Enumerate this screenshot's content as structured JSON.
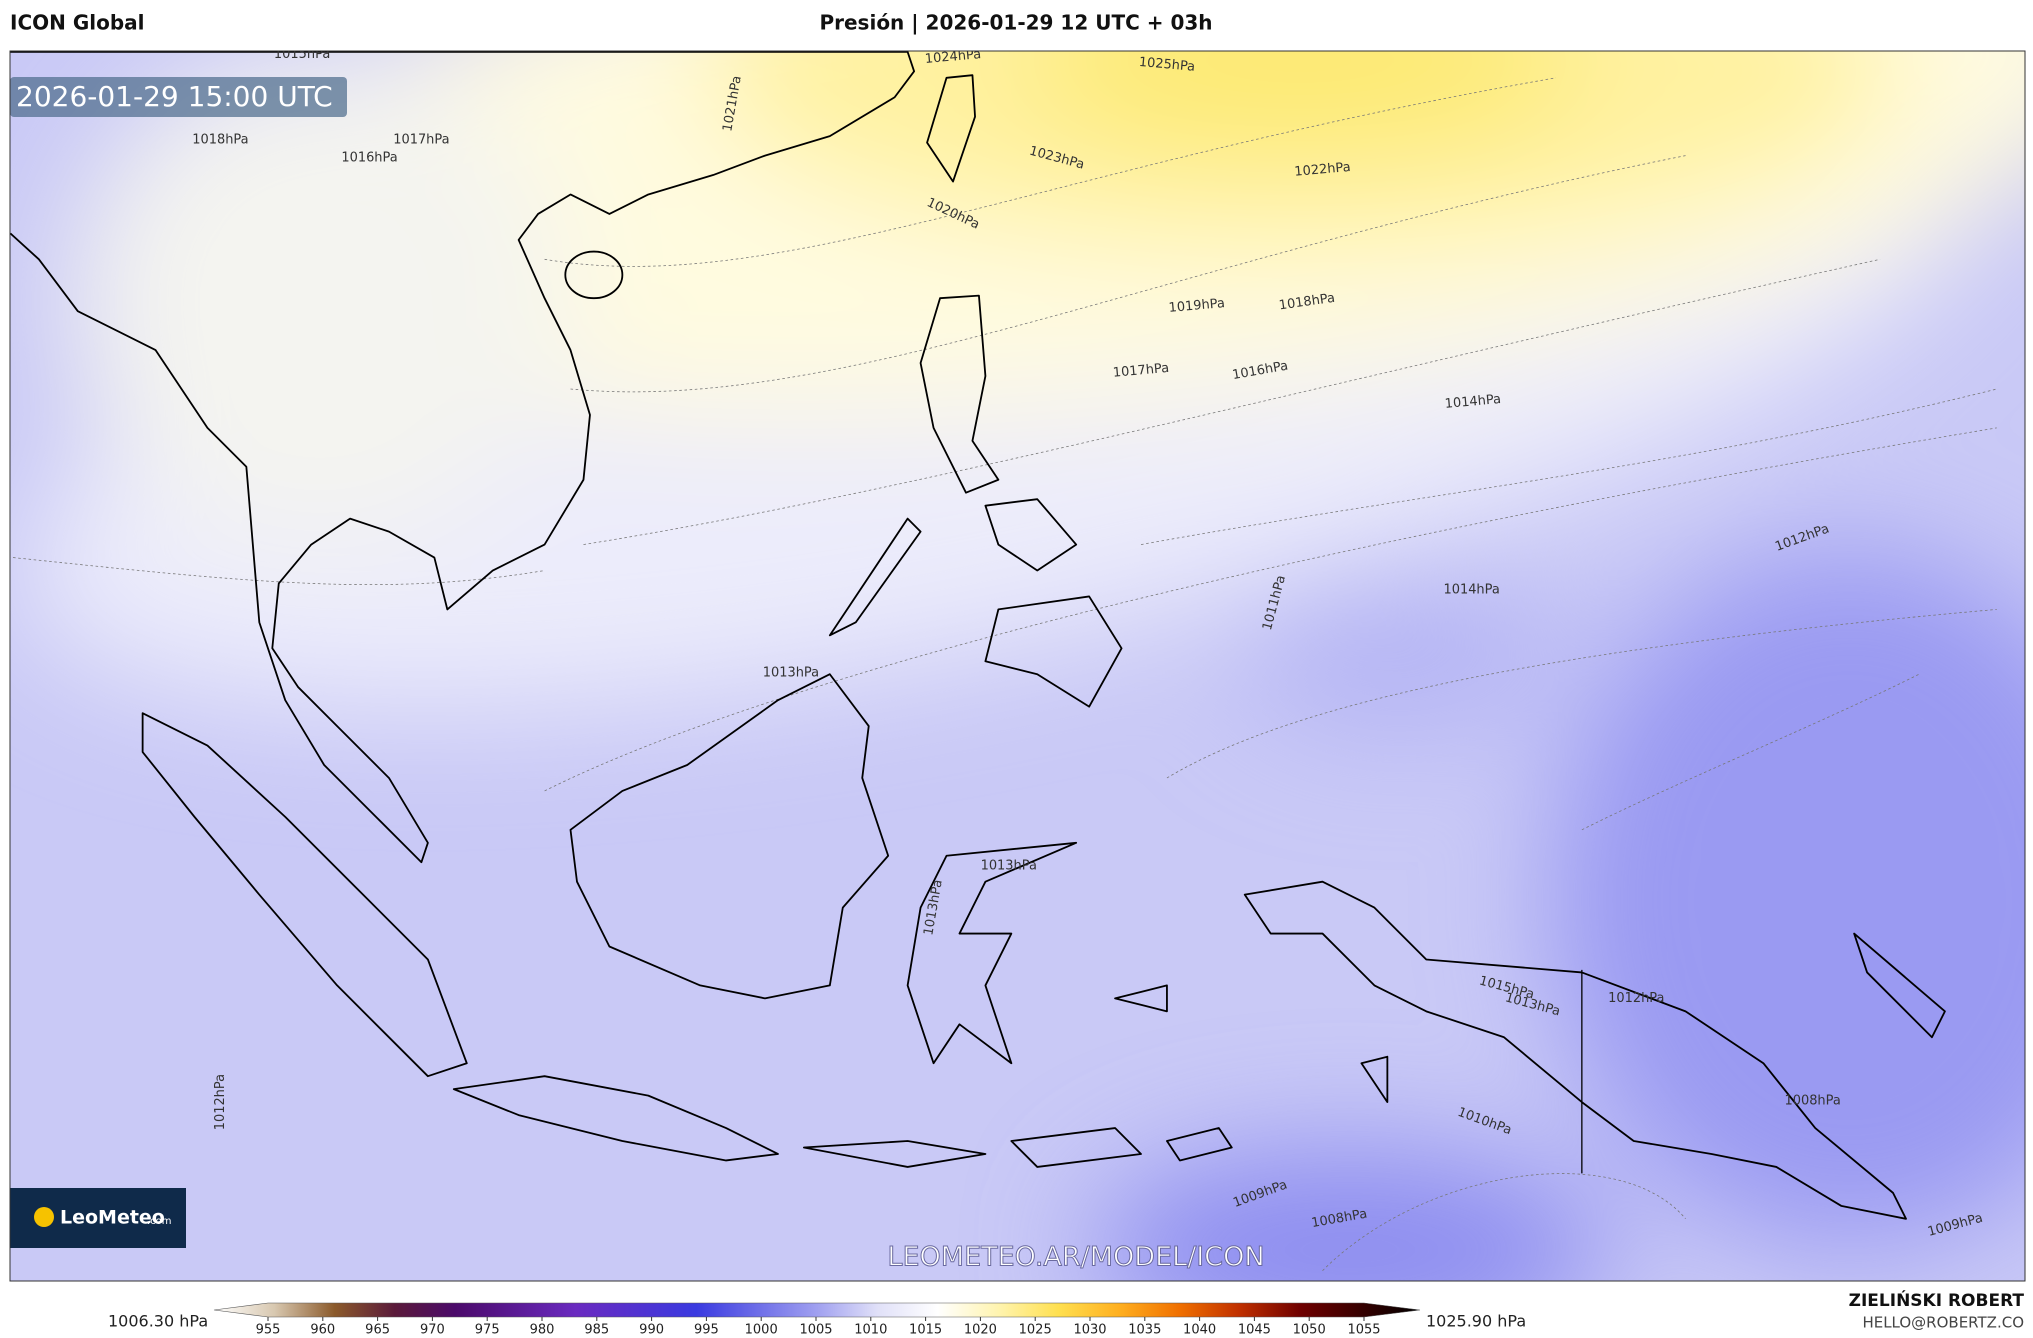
{
  "header": {
    "model": "ICON Global",
    "title": "Presión | 2026-01-29 12 UTC + 03h"
  },
  "map": {
    "valid_time": "2026-01-29 15:00 UTC",
    "watermark": "LEOMETEO.AR/MODEL/ICON",
    "contour_labels": [
      "1015hPa",
      "1024hPa",
      "1025hPa",
      "1023hPa",
      "1022hPa",
      "1021hPa",
      "1020hPa",
      "1019hPa",
      "1018hPa",
      "1017hPa",
      "1016hPa",
      "1014hPa",
      "1012hPa",
      "1011hPa",
      "1013hPa",
      "1014hPa",
      "1013hPa",
      "1015hPa",
      "1013hPa",
      "1012hPa",
      "1010hPa",
      "1009hPa",
      "1008hPa",
      "1008hPa",
      "1009hPa",
      "1012hPa",
      "1016hPa",
      "1017hPa",
      "1018hPa",
      "1013hPa"
    ]
  },
  "logo": {
    "name": "LeoMeteo",
    "suffix": ".com"
  },
  "colorbar": {
    "min_label": "1006.30 hPa",
    "max_label": "1025.90 hPa",
    "ticks": [
      955,
      960,
      965,
      970,
      975,
      980,
      985,
      990,
      995,
      1000,
      1005,
      1010,
      1015,
      1020,
      1025,
      1030,
      1035,
      1040,
      1045,
      1050,
      1055
    ]
  },
  "credits": {
    "author": "ZIELIŃSKI ROBERT",
    "email": "HELLO@ROBERTZ.CO"
  }
}
